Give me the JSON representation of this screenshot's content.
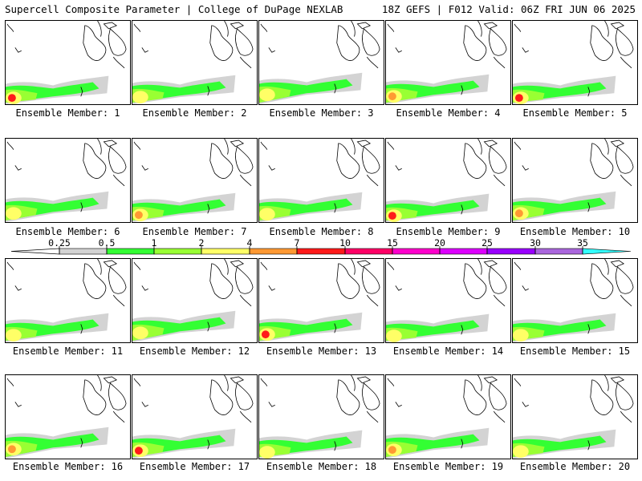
{
  "header": {
    "title": "Supercell Composite Parameter | College of DuPage NEXLAB",
    "run_info": "18Z GEFS | F012 Valid: 06Z FRI JUN 06 2025"
  },
  "colorbar": {
    "labels": [
      "0.25",
      "0.5",
      "1",
      "2",
      "4",
      "7",
      "10",
      "15",
      "20",
      "25",
      "30",
      "35"
    ],
    "colors": [
      "#d3d3d3",
      "#33ff33",
      "#99ff33",
      "#ffff66",
      "#ff9933",
      "#ff1a1a",
      "#ff0066",
      "#ff00cc",
      "#dd00ff",
      "#9900ff",
      "#aa66dd",
      "#33ffff"
    ]
  },
  "members": [
    {
      "label": "Ensemble Member: 1"
    },
    {
      "label": "Ensemble Member: 2"
    },
    {
      "label": "Ensemble Member: 3"
    },
    {
      "label": "Ensemble Member: 4"
    },
    {
      "label": "Ensemble Member: 5"
    },
    {
      "label": "Ensemble Member: 6"
    },
    {
      "label": "Ensemble Member: 7"
    },
    {
      "label": "Ensemble Member: 8"
    },
    {
      "label": "Ensemble Member: 9"
    },
    {
      "label": "Ensemble Member: 10"
    },
    {
      "label": "Ensemble Member: 11"
    },
    {
      "label": "Ensemble Member: 12"
    },
    {
      "label": "Ensemble Member: 13"
    },
    {
      "label": "Ensemble Member: 14"
    },
    {
      "label": "Ensemble Member: 15"
    },
    {
      "label": "Ensemble Member: 16"
    },
    {
      "label": "Ensemble Member: 17"
    },
    {
      "label": "Ensemble Member: 18"
    },
    {
      "label": "Ensemble Member: 19"
    },
    {
      "label": "Ensemble Member: 20"
    }
  ]
}
